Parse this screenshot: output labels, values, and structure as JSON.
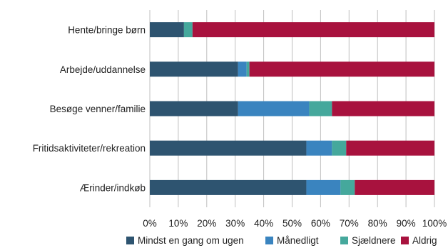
{
  "chart_data": {
    "type": "bar",
    "orientation": "horizontal",
    "stacked": true,
    "categories": [
      "Hente/bringe børn",
      "Arbejde/uddannelse",
      "Besøge venner/familie",
      "Fritidsaktiviteter/rekreation",
      "Ærinder/indkøb"
    ],
    "series": [
      {
        "name": "Mindst en gang om ugen",
        "color": "#2e5470",
        "values": [
          12,
          31,
          31,
          55,
          55
        ]
      },
      {
        "name": "Månedligt",
        "color": "#3a84bf",
        "values": [
          0,
          3,
          25,
          9,
          12
        ]
      },
      {
        "name": "Sjældnere",
        "color": "#45a89c",
        "values": [
          3,
          1,
          8,
          5,
          5
        ]
      },
      {
        "name": "Aldrig",
        "color": "#a8123e",
        "values": [
          85,
          65,
          36,
          31,
          28
        ]
      }
    ],
    "xlim": [
      0,
      100
    ],
    "ticks": [
      "0%",
      "10%",
      "20%",
      "30%",
      "40%",
      "50%",
      "60%",
      "70%",
      "80%",
      "90%",
      "100%"
    ],
    "grid": "vertical",
    "legend": "bottom",
    "title": "",
    "xlabel": "",
    "ylabel": ""
  }
}
